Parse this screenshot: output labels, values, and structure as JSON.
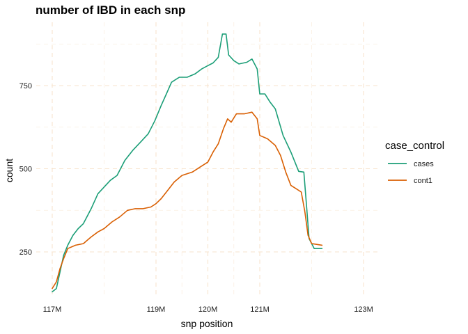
{
  "chart_data": {
    "type": "line",
    "title": "number of IBD in each snp",
    "xlabel": "snp position",
    "ylabel": "count",
    "xlim": [
      117,
      123
    ],
    "ylim": [
      140,
      905
    ],
    "x_ticks": [
      117,
      119,
      120,
      121,
      123
    ],
    "x_tick_labels": [
      "117M",
      "119M",
      "120M",
      "121M",
      "123M"
    ],
    "y_ticks": [
      250,
      500,
      750
    ],
    "y_tick_labels": [
      "250",
      "500",
      "750"
    ],
    "grid": true,
    "legend": {
      "title": "case_control",
      "position": "right"
    },
    "series": [
      {
        "name": "cases",
        "color": "#1b9e77",
        "points": [
          [
            117.0,
            130
          ],
          [
            117.08,
            140
          ],
          [
            117.15,
            190
          ],
          [
            117.22,
            240
          ],
          [
            117.3,
            270
          ],
          [
            117.4,
            300
          ],
          [
            117.5,
            320
          ],
          [
            117.6,
            335
          ],
          [
            117.75,
            380
          ],
          [
            117.88,
            425
          ],
          [
            118.0,
            445
          ],
          [
            118.12,
            465
          ],
          [
            118.25,
            480
          ],
          [
            118.4,
            525
          ],
          [
            118.55,
            555
          ],
          [
            118.7,
            580
          ],
          [
            118.85,
            605
          ],
          [
            118.98,
            645
          ],
          [
            119.1,
            690
          ],
          [
            119.2,
            725
          ],
          [
            119.3,
            760
          ],
          [
            119.45,
            775
          ],
          [
            119.6,
            775
          ],
          [
            119.75,
            785
          ],
          [
            119.88,
            800
          ],
          [
            120.0,
            810
          ],
          [
            120.1,
            818
          ],
          [
            120.2,
            835
          ],
          [
            120.28,
            905
          ],
          [
            120.35,
            905
          ],
          [
            120.4,
            842
          ],
          [
            120.5,
            825
          ],
          [
            120.6,
            815
          ],
          [
            120.75,
            820
          ],
          [
            120.85,
            830
          ],
          [
            120.95,
            800
          ],
          [
            121.0,
            725
          ],
          [
            121.1,
            725
          ],
          [
            121.2,
            700
          ],
          [
            121.3,
            680
          ],
          [
            121.45,
            600
          ],
          [
            121.6,
            550
          ],
          [
            121.75,
            492
          ],
          [
            121.85,
            490
          ],
          [
            121.9,
            390
          ],
          [
            121.95,
            290
          ],
          [
            122.05,
            260
          ],
          [
            122.2,
            260
          ]
        ]
      },
      {
        "name": "cont1",
        "color": "#d95f02",
        "points": [
          [
            117.0,
            140
          ],
          [
            117.08,
            160
          ],
          [
            117.15,
            200
          ],
          [
            117.22,
            230
          ],
          [
            117.3,
            260
          ],
          [
            117.45,
            270
          ],
          [
            117.6,
            275
          ],
          [
            117.75,
            295
          ],
          [
            117.88,
            310
          ],
          [
            118.0,
            320
          ],
          [
            118.15,
            340
          ],
          [
            118.3,
            355
          ],
          [
            118.45,
            375
          ],
          [
            118.6,
            380
          ],
          [
            118.75,
            380
          ],
          [
            118.9,
            385
          ],
          [
            119.0,
            395
          ],
          [
            119.1,
            410
          ],
          [
            119.2,
            430
          ],
          [
            119.35,
            460
          ],
          [
            119.5,
            480
          ],
          [
            119.7,
            490
          ],
          [
            119.85,
            505
          ],
          [
            120.0,
            520
          ],
          [
            120.1,
            550
          ],
          [
            120.2,
            575
          ],
          [
            120.3,
            620
          ],
          [
            120.38,
            650
          ],
          [
            120.45,
            640
          ],
          [
            120.55,
            665
          ],
          [
            120.7,
            665
          ],
          [
            120.85,
            670
          ],
          [
            120.95,
            650
          ],
          [
            121.0,
            600
          ],
          [
            121.15,
            590
          ],
          [
            121.3,
            570
          ],
          [
            121.4,
            540
          ],
          [
            121.5,
            490
          ],
          [
            121.6,
            450
          ],
          [
            121.7,
            440
          ],
          [
            121.8,
            430
          ],
          [
            121.87,
            370
          ],
          [
            121.93,
            300
          ],
          [
            122.0,
            275
          ],
          [
            122.2,
            270
          ]
        ]
      }
    ]
  }
}
